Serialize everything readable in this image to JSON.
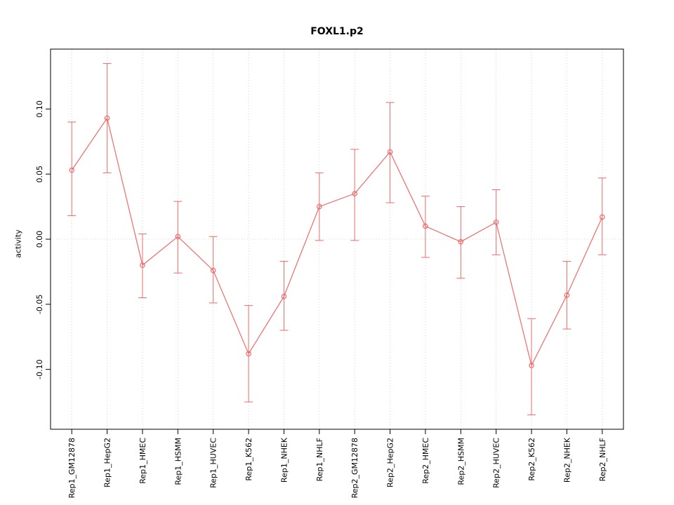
{
  "chart_data": {
    "type": "line",
    "title": "FOXL1.p2",
    "xlabel": "",
    "ylabel": "activity",
    "categories": [
      "Rep1_GM12878",
      "Rep1_HepG2",
      "Rep1_HMEC",
      "Rep1_HSMM",
      "Rep1_HUVEC",
      "Rep1_K562",
      "Rep1_NHEK",
      "Rep1_NHLF",
      "Rep2_GM12878",
      "Rep2_HepG2",
      "Rep2_HMEC",
      "Rep2_HSMM",
      "Rep2_HUVEC",
      "Rep2_K562",
      "Rep2_NHEK",
      "Rep2_NHLF"
    ],
    "series": [
      {
        "name": "activity",
        "values": [
          0.053,
          0.093,
          -0.02,
          0.002,
          -0.024,
          -0.088,
          -0.044,
          0.025,
          0.035,
          0.067,
          0.01,
          -0.002,
          0.013,
          -0.097,
          -0.043,
          0.017
        ],
        "lower": [
          0.018,
          0.051,
          -0.045,
          -0.026,
          -0.049,
          -0.125,
          -0.07,
          -0.001,
          -0.001,
          0.028,
          -0.014,
          -0.03,
          -0.012,
          -0.135,
          -0.069,
          -0.012
        ],
        "upper": [
          0.09,
          0.135,
          0.004,
          0.029,
          0.002,
          -0.051,
          -0.017,
          0.051,
          0.069,
          0.105,
          0.033,
          0.025,
          0.038,
          -0.061,
          -0.017,
          0.047
        ],
        "color": "#f06a6a",
        "marker": "open-circle"
      }
    ],
    "yticks": [
      -0.1,
      -0.05,
      0.0,
      0.05,
      0.1
    ],
    "ytick_labels": [
      "-0.10",
      "-0.05",
      "0.00",
      "0.05",
      "0.10"
    ],
    "ylim": [
      -0.146,
      0.146
    ],
    "grid": {
      "vertical_dotted_at_each_category": true,
      "horizontal_dotted_at_zero": true,
      "grid_color": "#d4d4d4"
    },
    "legend_position": "none",
    "frame_color": "#000000",
    "error_bars": true
  }
}
